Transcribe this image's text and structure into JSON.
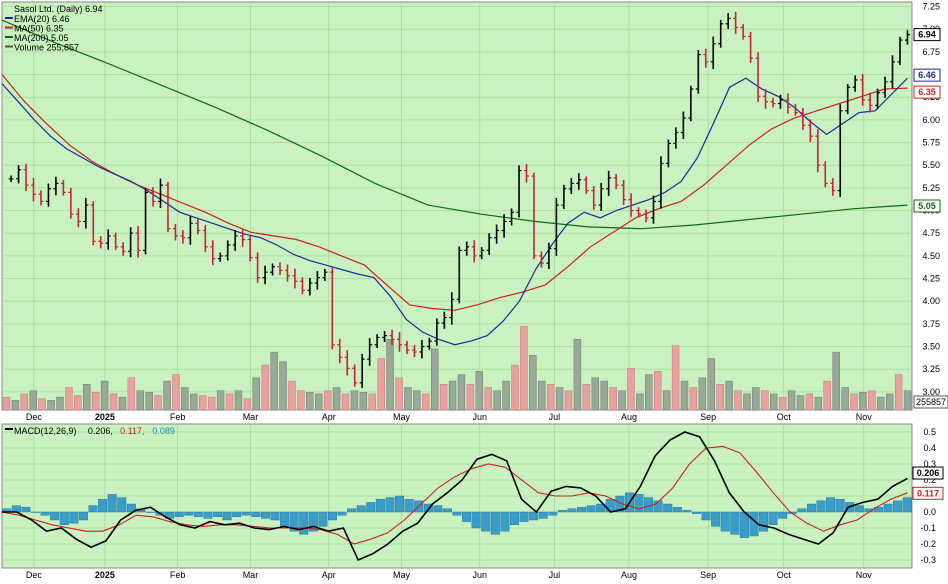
{
  "chart_data": [
    {
      "type": "ohlc",
      "title": "Sasol Ltd. (Daily) 6.94",
      "legend": [
        {
          "label": "EMA(20) 6.46",
          "color": "#1a2a9c"
        },
        {
          "label": "MA(50) 6.35",
          "color": "#cc1f1f"
        },
        {
          "label": "MA(200) 5.05",
          "color": "#0f6a0f"
        },
        {
          "label": "Volume 255,857",
          "color": "#555555"
        }
      ],
      "ylim": [
        2.8,
        7.3
      ],
      "y_ticks": [
        "3.00",
        "3.25",
        "3.50",
        "3.75",
        "4.00",
        "4.25",
        "4.50",
        "4.75",
        "5.00",
        "5.25",
        "5.50",
        "5.75",
        "6.00",
        "6.25",
        "6.50",
        "6.75",
        "7.00",
        "7.25"
      ],
      "x_ticks": [
        "Dec",
        "2025",
        "Feb",
        "Mar",
        "Apr",
        "May",
        "Jun",
        "Jul",
        "Aug",
        "Sep",
        "Oct",
        "Nov"
      ],
      "x_tick_pos": [
        0.046,
        0.124,
        0.204,
        0.284,
        0.37,
        0.45,
        0.536,
        0.618,
        0.7,
        0.787,
        0.87,
        0.958
      ],
      "price_tags": [
        {
          "label": "6.94",
          "value": 6.94,
          "color": "#000000"
        },
        {
          "label": "6.46",
          "value": 6.46,
          "color": "#1a2a9c"
        },
        {
          "label": "6.35",
          "value": 6.35,
          "color": "#cc1f1f"
        },
        {
          "label": "5.05",
          "value": 5.05,
          "color": "#0f6a0f"
        }
      ],
      "volume_label": "255857",
      "closes": [
        5.35,
        5.45,
        5.28,
        5.18,
        5.1,
        5.24,
        5.3,
        5.2,
        4.96,
        4.88,
        5.06,
        4.66,
        4.64,
        4.72,
        4.6,
        4.55,
        4.75,
        4.56,
        5.2,
        5.1,
        5.28,
        4.8,
        4.72,
        4.7,
        4.86,
        4.78,
        4.6,
        4.47,
        4.5,
        4.62,
        4.72,
        4.68,
        4.48,
        4.26,
        4.32,
        4.38,
        4.34,
        4.28,
        4.22,
        4.12,
        4.2,
        4.26,
        4.32,
        3.52,
        3.38,
        3.26,
        3.1,
        3.36,
        3.52,
        3.6,
        3.62,
        3.58,
        3.52,
        3.46,
        3.44,
        3.5,
        3.56,
        3.76,
        3.82,
        4.02,
        4.56,
        4.6,
        4.5,
        4.56,
        4.7,
        4.78,
        4.88,
        4.98,
        5.44,
        5.38,
        4.5,
        4.42,
        4.58,
        5.06,
        5.24,
        5.3,
        5.34,
        5.22,
        5.06,
        5.24,
        5.36,
        5.28,
        5.12,
        5.0,
        4.96,
        4.92,
        5.1,
        5.52,
        5.74,
        5.86,
        6.02,
        6.34,
        6.72,
        6.64,
        6.84,
        7.06,
        7.12,
        7.02,
        6.92,
        6.68,
        6.26,
        6.2,
        6.18,
        6.22,
        6.14,
        6.08,
        5.94,
        5.82,
        5.5,
        5.3,
        5.22,
        6.1,
        6.36,
        6.44,
        6.22,
        6.16,
        6.3,
        6.42,
        6.64,
        6.88,
        6.94
      ],
      "ema20": [
        6.4,
        6.2,
        6.0,
        5.82,
        5.68,
        5.58,
        5.48,
        5.4,
        5.32,
        5.22,
        5.1,
        4.98,
        4.92,
        4.86,
        4.8,
        4.74,
        4.7,
        4.62,
        4.52,
        4.45,
        4.4,
        4.35,
        4.3,
        4.26,
        4.06,
        3.8,
        3.66,
        3.58,
        3.52,
        3.56,
        3.62,
        3.78,
        4.0,
        4.35,
        4.62,
        4.86,
        4.98,
        4.92,
        5.0,
        5.06,
        5.12,
        5.2,
        5.32,
        5.58,
        5.96,
        6.36,
        6.46,
        6.34,
        6.26,
        6.14,
        5.98,
        5.84,
        5.96,
        6.08,
        6.1,
        6.28,
        6.46
      ],
      "ma50": [
        6.5,
        6.2,
        5.95,
        5.72,
        5.54,
        5.4,
        5.28,
        5.18,
        5.08,
        4.98,
        4.86,
        4.76,
        4.72,
        4.68,
        4.6,
        4.5,
        4.4,
        4.18,
        3.96,
        3.92,
        3.9,
        3.96,
        4.04,
        4.1,
        4.18,
        4.38,
        4.6,
        4.76,
        4.92,
        5.02,
        5.1,
        5.28,
        5.5,
        5.72,
        5.9,
        6.02,
        6.1,
        6.18,
        6.26,
        6.34,
        6.35
      ],
      "ma200": [
        7.1,
        6.85,
        6.62,
        6.38,
        6.14,
        5.88,
        5.6,
        5.3,
        5.06,
        4.96,
        4.88,
        4.82,
        4.8,
        4.84,
        4.9,
        4.96,
        5.02,
        5.06
      ],
      "volume": [
        0.4,
        0.3,
        0.5,
        0.6,
        0.35,
        0.3,
        0.4,
        0.7,
        0.45,
        0.8,
        0.55,
        0.9,
        0.5,
        0.4,
        1.0,
        0.6,
        0.55,
        0.45,
        0.9,
        1.1,
        0.7,
        0.5,
        0.45,
        0.4,
        0.6,
        0.5,
        0.6,
        0.35,
        1.0,
        1.4,
        1.8,
        1.5,
        0.9,
        0.6,
        0.55,
        0.5,
        0.6,
        0.7,
        0.5,
        0.6,
        0.55,
        0.5,
        1.6,
        2.2,
        1.0,
        0.7,
        0.6,
        0.5,
        1.9,
        0.8,
        0.9,
        1.1,
        0.8,
        1.2,
        0.7,
        0.6,
        0.9,
        1.4,
        2.6,
        1.7,
        0.9,
        0.8,
        0.7,
        0.6,
        2.2,
        0.8,
        1.0,
        0.9,
        0.7,
        0.6,
        1.3,
        0.5,
        1.1,
        1.2,
        0.6,
        2.0,
        0.9,
        0.7,
        1.0,
        1.6,
        0.8,
        0.9,
        0.6,
        0.5,
        0.7,
        0.6,
        0.5,
        0.4,
        0.6,
        0.45,
        0.5,
        0.4,
        0.9,
        1.8,
        0.7,
        0.5,
        0.55,
        0.6,
        0.4,
        0.5,
        1.1,
        0.6
      ],
      "volume_colors": [
        "r",
        "k",
        "r",
        "k",
        "r",
        "k",
        "k",
        "r",
        "r",
        "k",
        "r",
        "k",
        "r",
        "k",
        "r",
        "k",
        "k",
        "r",
        "k",
        "r",
        "k",
        "k",
        "r",
        "r",
        "k",
        "r",
        "k",
        "r",
        "k",
        "r",
        "k",
        "k",
        "r",
        "r",
        "k",
        "k",
        "r",
        "k",
        "r",
        "k",
        "k",
        "r",
        "r",
        "k",
        "r",
        "k",
        "k",
        "r",
        "k",
        "r",
        "k",
        "k",
        "r",
        "k",
        "r",
        "k",
        "k",
        "r",
        "r",
        "k",
        "k",
        "r",
        "k",
        "r",
        "k",
        "r",
        "k",
        "k",
        "r",
        "k",
        "r",
        "k",
        "k",
        "r",
        "k",
        "r",
        "k",
        "r",
        "k",
        "k",
        "r",
        "k",
        "r",
        "k",
        "k",
        "r",
        "k",
        "r",
        "k",
        "k",
        "r",
        "k",
        "r",
        "k",
        "k",
        "r",
        "k",
        "r",
        "k",
        "k",
        "r",
        "k"
      ]
    },
    {
      "type": "line",
      "title": "MACD(12,26,9) 0.206, 0.117, 0.089",
      "legend": [
        {
          "label": "MACD(12,26,9)",
          "color": "#000000"
        },
        {
          "label": "0.206",
          "color": "#000000"
        },
        {
          "label": "0.117",
          "color": "#cc1f1f"
        },
        {
          "label": "0.089",
          "color": "#2a8ab8"
        }
      ],
      "ylim": [
        -0.35,
        0.55
      ],
      "y_ticks": [
        "0.5",
        "0.4",
        "0.3",
        "0.2",
        "0.1",
        "0.0",
        "-0.1",
        "-0.2",
        "-0.3"
      ],
      "price_tags": [
        {
          "label": "0.206",
          "value": 0.206,
          "color": "#000000"
        },
        {
          "label": "0.117",
          "value": 0.117,
          "color": "#cc1f1f"
        }
      ],
      "macd": [
        0.0,
        0.0,
        -0.05,
        -0.12,
        -0.1,
        -0.17,
        -0.22,
        -0.18,
        -0.05,
        0.01,
        0.03,
        -0.03,
        -0.08,
        -0.1,
        -0.06,
        -0.08,
        -0.07,
        -0.1,
        -0.11,
        -0.09,
        -0.11,
        -0.09,
        -0.12,
        -0.1,
        -0.3,
        -0.26,
        -0.2,
        -0.12,
        -0.07,
        0.05,
        0.12,
        0.2,
        0.33,
        0.36,
        0.32,
        0.08,
        0.0,
        0.13,
        0.16,
        0.15,
        0.1,
        0.0,
        0.02,
        0.16,
        0.35,
        0.45,
        0.5,
        0.47,
        0.32,
        0.12,
        0.0,
        -0.08,
        -0.1,
        -0.14,
        -0.17,
        -0.2,
        -0.13,
        0.03,
        0.06,
        0.08,
        0.16,
        0.21
      ],
      "signal": [
        0.0,
        -0.02,
        -0.05,
        -0.08,
        -0.1,
        -0.12,
        -0.12,
        -0.08,
        -0.02,
        -0.03,
        -0.06,
        -0.08,
        -0.09,
        -0.08,
        -0.08,
        -0.09,
        -0.1,
        -0.1,
        -0.1,
        -0.11,
        -0.14,
        -0.2,
        -0.17,
        -0.13,
        -0.05,
        0.05,
        0.15,
        0.22,
        0.27,
        0.3,
        0.28,
        0.2,
        0.12,
        0.1,
        0.1,
        0.12,
        0.1,
        0.05,
        0.02,
        0.05,
        0.15,
        0.3,
        0.4,
        0.41,
        0.37,
        0.25,
        0.12,
        0.0,
        -0.07,
        -0.12,
        -0.08,
        -0.05,
        0.02,
        0.08,
        0.12
      ],
      "histogram": [
        0.02,
        0.04,
        0.03,
        0.0,
        -0.02,
        -0.05,
        -0.08,
        -0.07,
        -0.05,
        0.04,
        0.08,
        0.11,
        0.09,
        0.05,
        0.02,
        0.0,
        -0.02,
        -0.04,
        -0.03,
        -0.02,
        -0.03,
        -0.04,
        -0.03,
        -0.05,
        -0.03,
        -0.02,
        -0.03,
        -0.04,
        -0.05,
        -0.1,
        -0.12,
        -0.14,
        -0.12,
        -0.09,
        -0.05,
        -0.02,
        0.02,
        0.04,
        0.06,
        0.08,
        0.09,
        0.1,
        0.08,
        0.07,
        0.05,
        0.04,
        0.02,
        -0.02,
        -0.06,
        -0.1,
        -0.12,
        -0.14,
        -0.12,
        -0.08,
        -0.06,
        -0.05,
        -0.04,
        -0.02,
        0.01,
        0.02,
        0.03,
        0.04,
        0.05,
        0.08,
        0.1,
        0.12,
        0.11,
        0.09,
        0.07,
        0.05,
        0.03,
        0.01,
        -0.01,
        -0.05,
        -0.09,
        -0.12,
        -0.14,
        -0.16,
        -0.15,
        -0.12,
        -0.08,
        -0.04,
        -0.01,
        0.02,
        0.05,
        0.07,
        0.09,
        0.08,
        0.06,
        0.04,
        0.02,
        0.03,
        0.05,
        0.07,
        0.09
      ]
    }
  ]
}
